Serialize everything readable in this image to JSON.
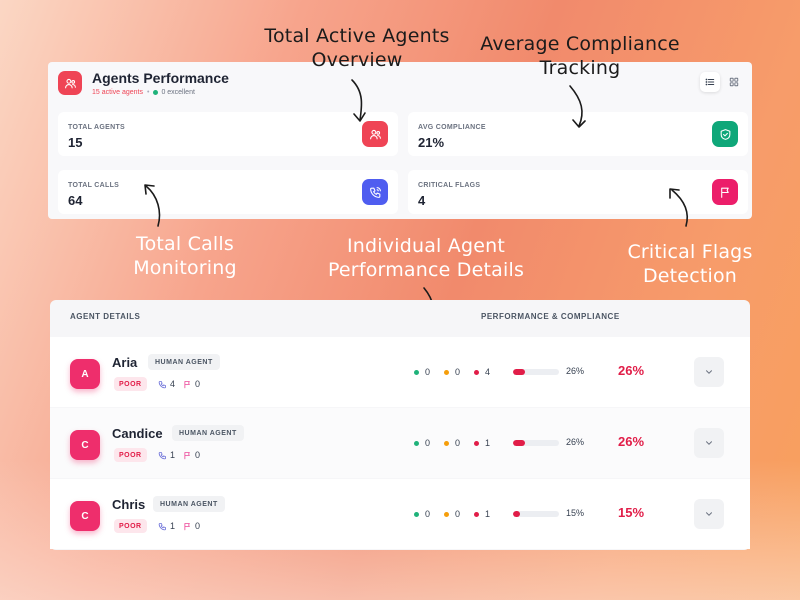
{
  "header": {
    "title": "Agents Performance",
    "active_agents": "15 active agents",
    "excellent": "0 excellent"
  },
  "stats": {
    "total_agents": {
      "label": "TOTAL AGENTS",
      "value": "15",
      "icon": "users-icon",
      "color": "#ef4455"
    },
    "avg_compliance": {
      "label": "AVG COMPLIANCE",
      "value": "21%",
      "icon": "shield-check-icon",
      "color": "#0fa779"
    },
    "total_calls": {
      "label": "TOTAL CALLS",
      "value": "64",
      "icon": "phone-call-icon",
      "color": "#4f5df0"
    },
    "critical_flags": {
      "label": "CRITICAL FLAGS",
      "value": "4",
      "icon": "flag-icon",
      "color": "#ec1e6a"
    }
  },
  "annotations": {
    "total_active_agents": [
      "Total Active Agents",
      "Overview"
    ],
    "avg_compliance": [
      "Average Compliance",
      "Tracking"
    ],
    "total_calls": [
      "Total Calls",
      "Monitoring"
    ],
    "individual": [
      "Individual Agent",
      "Performance Details"
    ],
    "critical_flags": [
      "Critical Flags",
      "Detection"
    ]
  },
  "table": {
    "col_agent": "AGENT DETAILS",
    "col_perf": "PERFORMANCE & COMPLIANCE",
    "rows": [
      {
        "initial": "A",
        "name": "Aria",
        "type": "HUMAN AGENT",
        "rating": "POOR",
        "calls": "4",
        "flags": "0",
        "green": "0",
        "orange": "0",
        "red": "4",
        "progress": 26,
        "pct_small": "26%",
        "pct_big": "26%"
      },
      {
        "initial": "C",
        "name": "Candice",
        "type": "HUMAN AGENT",
        "rating": "POOR",
        "calls": "1",
        "flags": "0",
        "green": "0",
        "orange": "0",
        "red": "1",
        "progress": 26,
        "pct_small": "26%",
        "pct_big": "26%"
      },
      {
        "initial": "C",
        "name": "Chris",
        "type": "HUMAN AGENT",
        "rating": "POOR",
        "calls": "1",
        "flags": "0",
        "green": "0",
        "orange": "0",
        "red": "1",
        "progress": 15,
        "pct_small": "15%",
        "pct_big": "15%"
      }
    ]
  },
  "colors": {
    "accent": "#e11d48",
    "green": "#1fb27a",
    "orange": "#f59e0b",
    "red": "#e11d48"
  }
}
